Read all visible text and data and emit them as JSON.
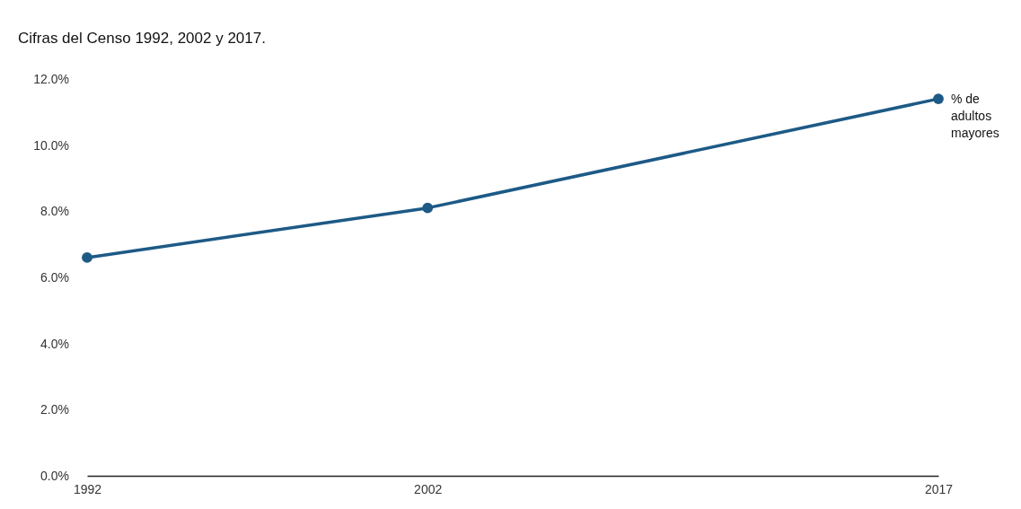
{
  "chart_data": {
    "type": "line",
    "title": "Cifras del Censo 1992, 2002 y 2017.",
    "x": [
      1992,
      2002,
      2017
    ],
    "series": [
      {
        "name": "% de adultos mayores",
        "color": "#1d5a86",
        "values": [
          6.6,
          8.1,
          11.4
        ]
      }
    ],
    "xlim": [
      1992,
      2017
    ],
    "xticks": [
      1992,
      2002,
      2017
    ],
    "ylim": [
      0,
      12
    ],
    "yticks": [
      {
        "value": 0,
        "label": "0.0%"
      },
      {
        "value": 2,
        "label": "2.0%"
      },
      {
        "value": 4,
        "label": "4.0%"
      },
      {
        "value": 6,
        "label": "6.0%"
      },
      {
        "value": 8,
        "label": "8.0%"
      },
      {
        "value": 10,
        "label": "10.0%"
      },
      {
        "value": 12,
        "label": "12.0%"
      }
    ],
    "marker": "circle",
    "line_style": "solid",
    "grid": false
  }
}
